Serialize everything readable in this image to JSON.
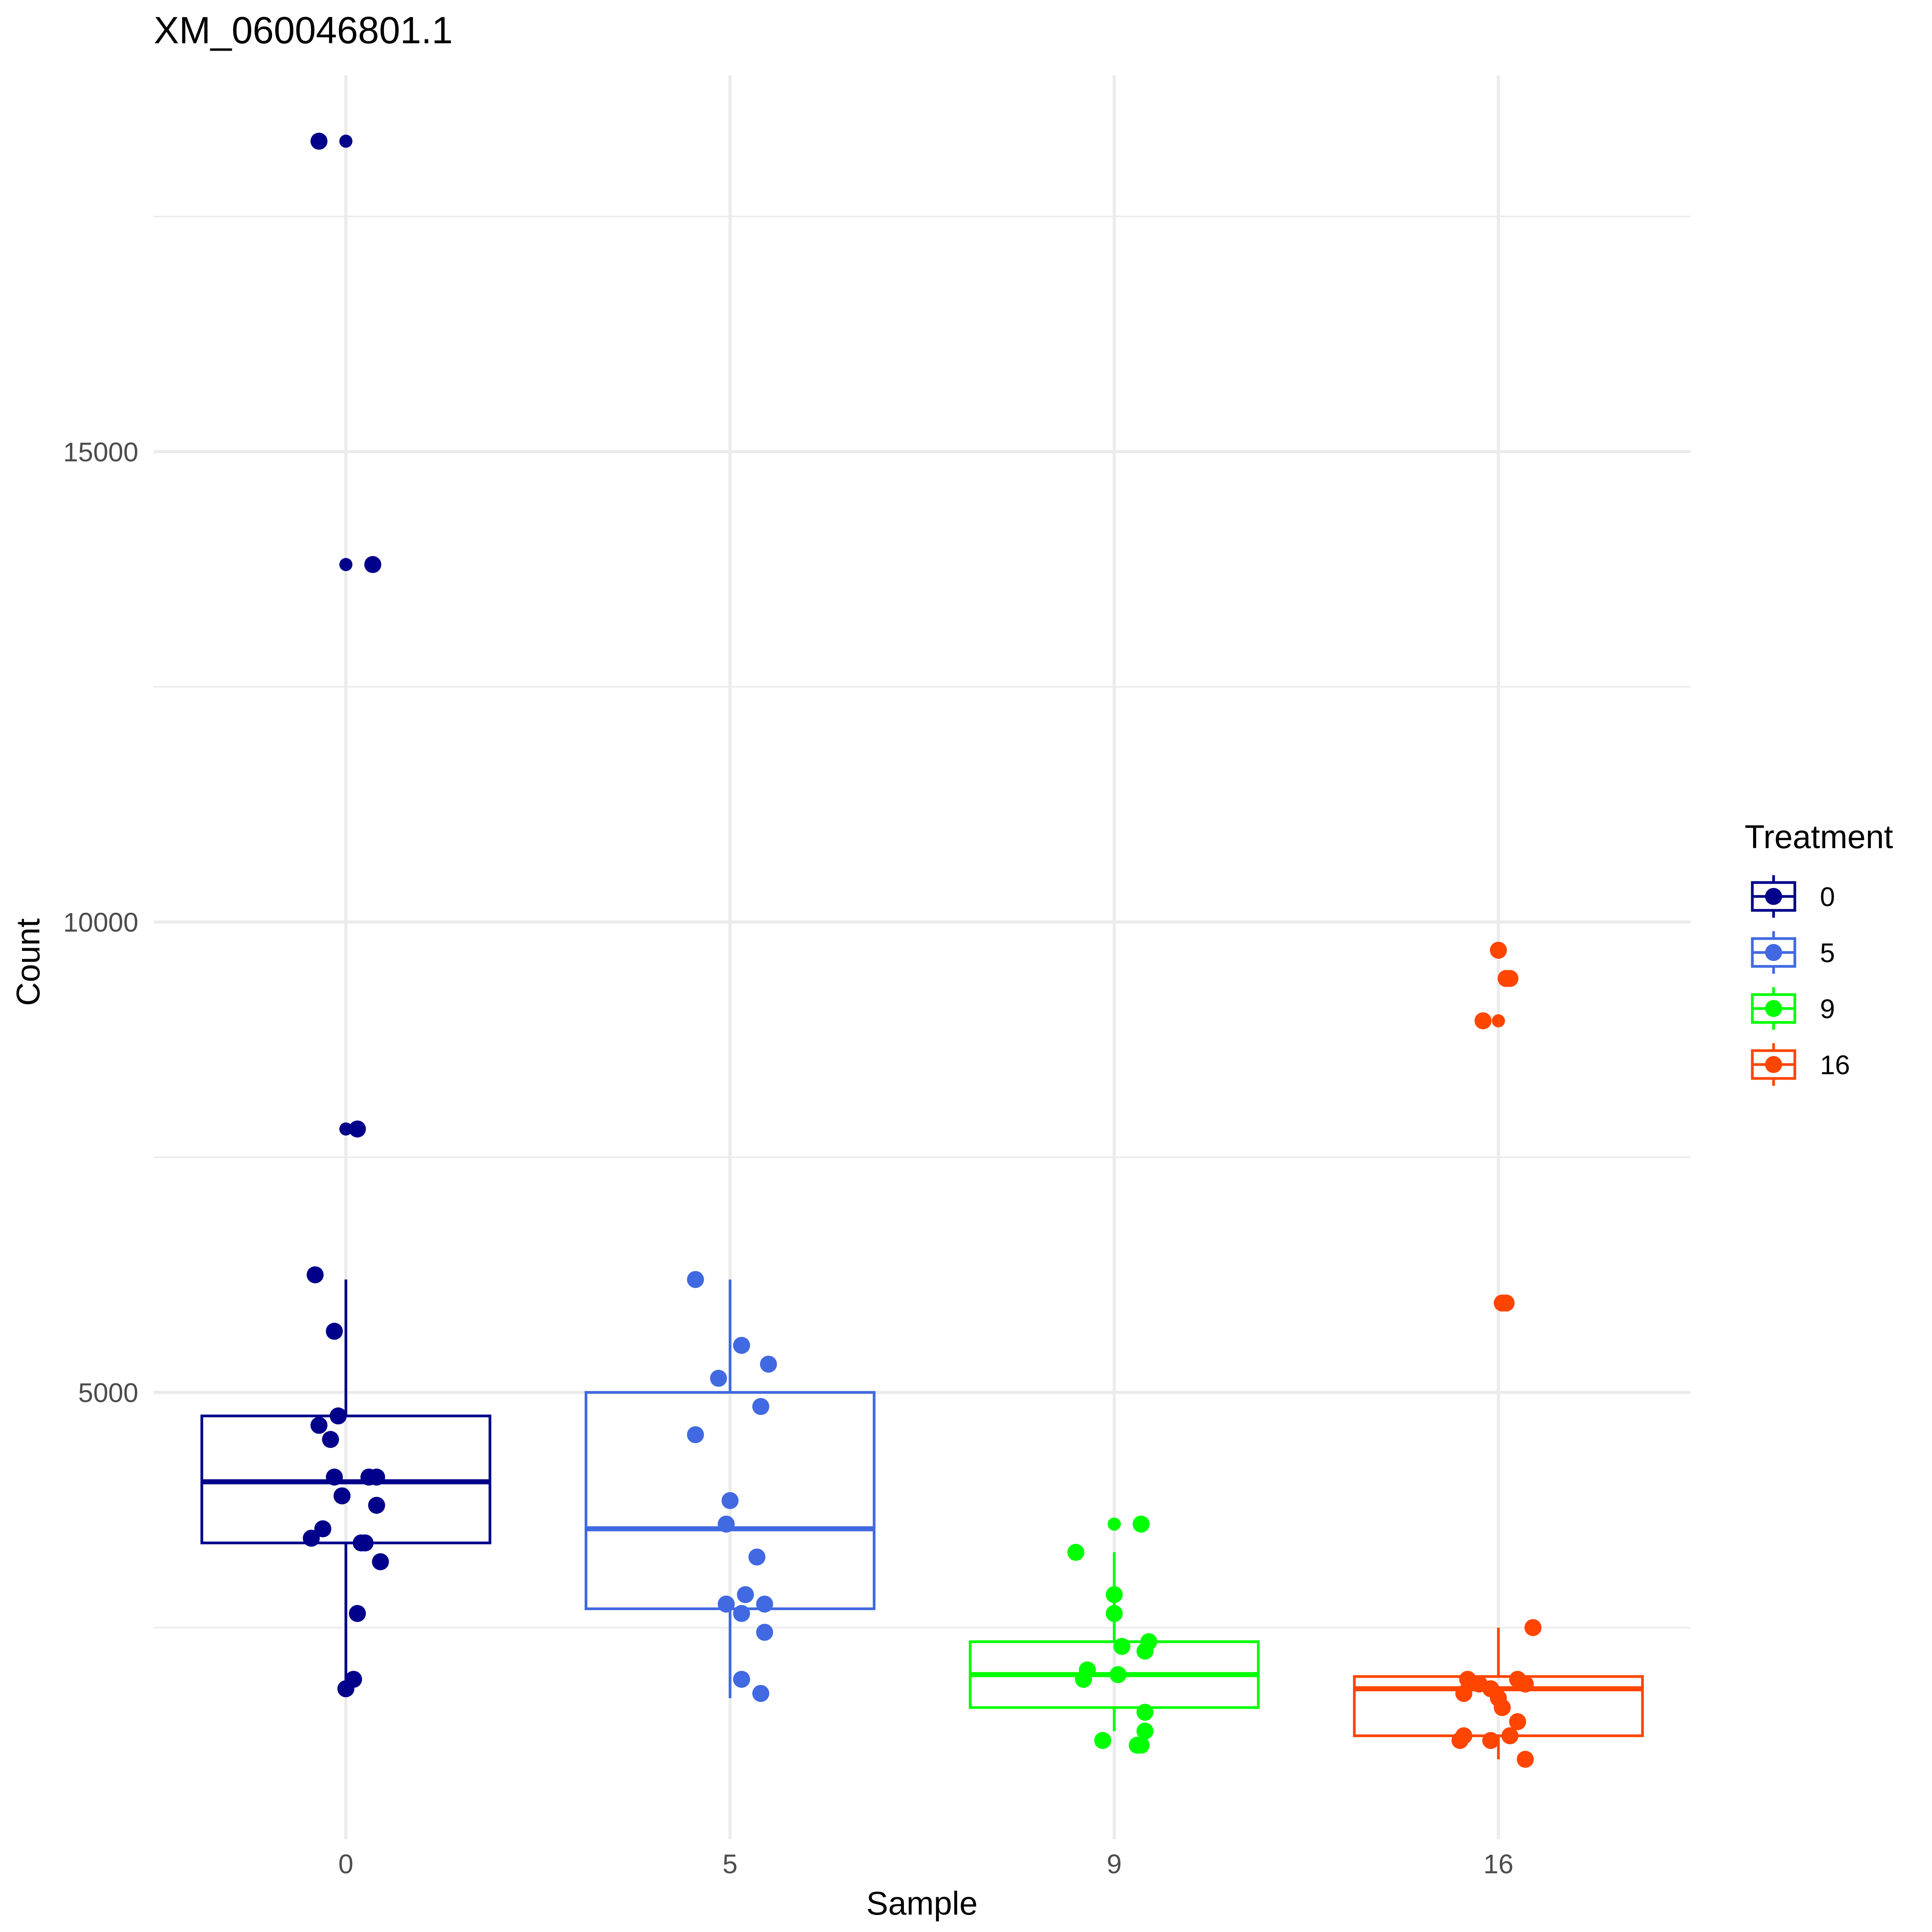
{
  "chart_data": {
    "type": "box",
    "title": "XM_060046801.1",
    "xlabel": "Sample",
    "ylabel": "Count",
    "categories": [
      "0",
      "5",
      "9",
      "16"
    ],
    "ylim": [
      250,
      19000
    ],
    "yticks": [
      5000,
      10000,
      15000
    ],
    "ytick_labels": [
      "5000",
      "10000",
      "15000"
    ],
    "minor_yticks": [
      2500,
      7500,
      12500,
      17500
    ],
    "grid": true,
    "legend": {
      "title": "Treatment",
      "position": "right",
      "entries": [
        "0",
        "5",
        "9",
        "16"
      ]
    },
    "series": [
      {
        "name": "0",
        "color": "#00008B",
        "box": {
          "q1": 3400,
          "median": 4050,
          "q3": 4750,
          "whisker_low": 1800,
          "whisker_high": 6200
        },
        "points": [
          {
            "dx": -0.07,
            "y": 18300
          },
          {
            "dx": 0.0,
            "y": 18300,
            "small": true
          },
          {
            "dx": 0.07,
            "y": 13800
          },
          {
            "dx": 0.0,
            "y": 13800,
            "small": true
          },
          {
            "dx": 0.03,
            "y": 7800
          },
          {
            "dx": 0.0,
            "y": 7800,
            "small": true
          },
          {
            "dx": -0.08,
            "y": 6250
          },
          {
            "dx": -0.03,
            "y": 5650
          },
          {
            "dx": -0.02,
            "y": 4750
          },
          {
            "dx": -0.07,
            "y": 4650
          },
          {
            "dx": -0.04,
            "y": 4500
          },
          {
            "dx": -0.03,
            "y": 4100
          },
          {
            "dx": 0.08,
            "y": 4100
          },
          {
            "dx": 0.06,
            "y": 4100
          },
          {
            "dx": -0.01,
            "y": 3900
          },
          {
            "dx": 0.08,
            "y": 3800
          },
          {
            "dx": -0.06,
            "y": 3550
          },
          {
            "dx": -0.09,
            "y": 3450
          },
          {
            "dx": 0.04,
            "y": 3400
          },
          {
            "dx": 0.05,
            "y": 3400
          },
          {
            "dx": 0.09,
            "y": 3200
          },
          {
            "dx": 0.03,
            "y": 2650
          },
          {
            "dx": 0.02,
            "y": 1950
          },
          {
            "dx": 0.0,
            "y": 1850
          }
        ]
      },
      {
        "name": "5",
        "color": "#4169E1",
        "box": {
          "q1": 2700,
          "median": 3550,
          "q3": 5000,
          "whisker_low": 1750,
          "whisker_high": 6200
        },
        "points": [
          {
            "dx": -0.09,
            "y": 6200
          },
          {
            "dx": 0.03,
            "y": 5500
          },
          {
            "dx": 0.1,
            "y": 5300
          },
          {
            "dx": -0.03,
            "y": 5150
          },
          {
            "dx": 0.08,
            "y": 4850
          },
          {
            "dx": -0.09,
            "y": 4550
          },
          {
            "dx": 0.0,
            "y": 3850
          },
          {
            "dx": -0.01,
            "y": 3600
          },
          {
            "dx": 0.07,
            "y": 3250
          },
          {
            "dx": 0.04,
            "y": 2850
          },
          {
            "dx": -0.01,
            "y": 2750
          },
          {
            "dx": 0.09,
            "y": 2750
          },
          {
            "dx": 0.03,
            "y": 2650
          },
          {
            "dx": 0.09,
            "y": 2450
          },
          {
            "dx": 0.03,
            "y": 1950
          },
          {
            "dx": 0.08,
            "y": 1800
          }
        ]
      },
      {
        "name": "9",
        "color": "#00FF00",
        "box": {
          "q1": 1650,
          "median": 2000,
          "q3": 2350,
          "whisker_low": 1400,
          "whisker_high": 3300
        },
        "points": [
          {
            "dx": 0.07,
            "y": 3600
          },
          {
            "dx": 0.0,
            "y": 3600,
            "small": true
          },
          {
            "dx": -0.1,
            "y": 3300
          },
          {
            "dx": 0.0,
            "y": 2850
          },
          {
            "dx": 0.0,
            "y": 2650
          },
          {
            "dx": 0.09,
            "y": 2350
          },
          {
            "dx": 0.02,
            "y": 2300
          },
          {
            "dx": 0.08,
            "y": 2250
          },
          {
            "dx": -0.07,
            "y": 2050
          },
          {
            "dx": 0.01,
            "y": 2000
          },
          {
            "dx": -0.08,
            "y": 1950
          },
          {
            "dx": 0.08,
            "y": 1600
          },
          {
            "dx": 0.08,
            "y": 1400
          },
          {
            "dx": -0.03,
            "y": 1300
          },
          {
            "dx": 0.07,
            "y": 1250
          },
          {
            "dx": 0.06,
            "y": 1250
          }
        ]
      },
      {
        "name": "16",
        "color": "#FF4500",
        "box": {
          "q1": 1350,
          "median": 1850,
          "q3": 1980,
          "whisker_low": 1100,
          "whisker_high": 2500
        },
        "points": [
          {
            "dx": 0.0,
            "y": 9700
          },
          {
            "dx": 0.02,
            "y": 9400
          },
          {
            "dx": 0.03,
            "y": 9400
          },
          {
            "dx": -0.04,
            "y": 8950
          },
          {
            "dx": 0.0,
            "y": 8950,
            "small": true
          },
          {
            "dx": 0.02,
            "y": 5950
          },
          {
            "dx": 0.01,
            "y": 5950
          },
          {
            "dx": 0.09,
            "y": 2500
          },
          {
            "dx": -0.08,
            "y": 1950
          },
          {
            "dx": -0.05,
            "y": 1900
          },
          {
            "dx": 0.05,
            "y": 1950
          },
          {
            "dx": 0.07,
            "y": 1900
          },
          {
            "dx": -0.02,
            "y": 1850
          },
          {
            "dx": -0.09,
            "y": 1800
          },
          {
            "dx": 0.0,
            "y": 1750
          },
          {
            "dx": 0.01,
            "y": 1650
          },
          {
            "dx": 0.05,
            "y": 1500
          },
          {
            "dx": -0.09,
            "y": 1350
          },
          {
            "dx": -0.1,
            "y": 1300
          },
          {
            "dx": 0.03,
            "y": 1350
          },
          {
            "dx": -0.02,
            "y": 1300
          },
          {
            "dx": 0.07,
            "y": 1100
          }
        ]
      }
    ]
  }
}
